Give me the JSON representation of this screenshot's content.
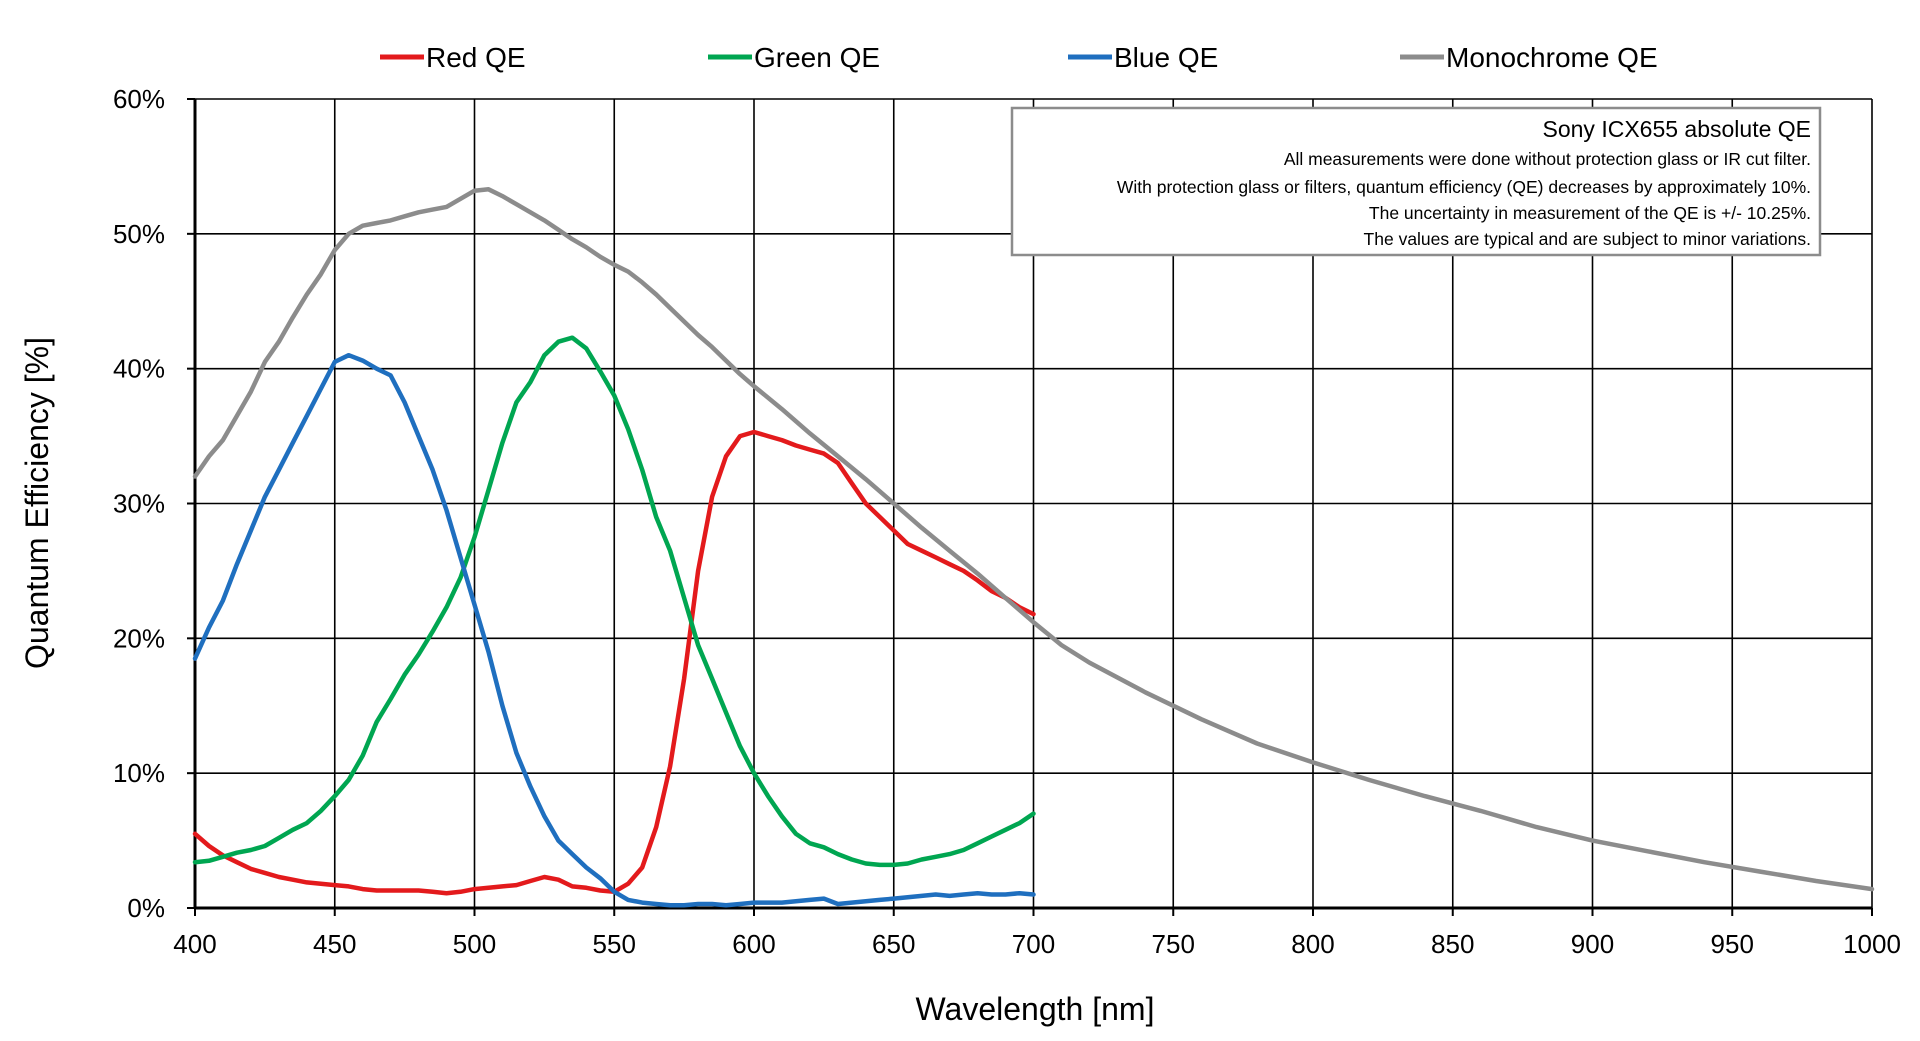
{
  "chart_data": {
    "type": "line",
    "xlabel": "Wavelength [nm]",
    "ylabel": "Quantum Efficiency [%]",
    "xlim": [
      400,
      1000
    ],
    "ylim": [
      0,
      60
    ],
    "x_ticks": [
      400,
      450,
      500,
      550,
      600,
      650,
      700,
      750,
      800,
      850,
      900,
      950,
      1000
    ],
    "x_tick_labels": [
      "400",
      "450",
      "500",
      "550",
      "600",
      "650",
      "700",
      "750",
      "800",
      "850",
      "900",
      "950",
      "1000"
    ],
    "y_ticks": [
      0,
      10,
      20,
      30,
      40,
      50,
      60
    ],
    "y_tick_labels": [
      "0%",
      "10%",
      "20%",
      "30%",
      "40%",
      "50%",
      "60%"
    ],
    "grid": true,
    "legend_position": "top",
    "annotation": {
      "title": "Sony ICX655 absolute QE",
      "lines": [
        "All measurements were done without protection glass or IR cut filter.",
        "With protection glass or filters, quantum efficiency (QE) decreases by approximately 10%.",
        "The uncertainty in measurement of the QE is +/- 10.25%.",
        "The values are typical and are subject to minor variations."
      ],
      "position": "top-right"
    },
    "series": [
      {
        "name": "Red QE",
        "color": "#e31a1c",
        "x": [
          400,
          405,
          410,
          415,
          420,
          425,
          430,
          435,
          440,
          445,
          450,
          455,
          460,
          465,
          470,
          475,
          480,
          485,
          490,
          495,
          500,
          505,
          510,
          515,
          520,
          525,
          530,
          535,
          540,
          545,
          550,
          555,
          560,
          565,
          570,
          575,
          580,
          585,
          590,
          595,
          600,
          605,
          610,
          615,
          620,
          625,
          630,
          635,
          640,
          645,
          650,
          655,
          660,
          665,
          670,
          675,
          680,
          685,
          690,
          695,
          700
        ],
        "y": [
          5.5,
          4.6,
          3.9,
          3.4,
          2.9,
          2.6,
          2.3,
          2.1,
          1.9,
          1.8,
          1.7,
          1.6,
          1.4,
          1.3,
          1.3,
          1.3,
          1.3,
          1.2,
          1.1,
          1.2,
          1.4,
          1.5,
          1.6,
          1.7,
          2.0,
          2.3,
          2.1,
          1.6,
          1.5,
          1.3,
          1.2,
          1.8,
          3.0,
          6.0,
          10.5,
          17.0,
          25.0,
          30.5,
          33.5,
          35.0,
          35.3,
          35.0,
          34.7,
          34.3,
          34.0,
          33.7,
          33.0,
          31.5,
          30.0,
          29.0,
          28.0,
          27.0,
          26.5,
          26.0,
          25.5,
          25.0,
          24.3,
          23.5,
          23.0,
          22.3,
          21.8
        ]
      },
      {
        "name": "Green QE",
        "color": "#00a651",
        "x": [
          400,
          405,
          410,
          415,
          420,
          425,
          430,
          435,
          440,
          445,
          450,
          455,
          460,
          465,
          470,
          475,
          480,
          485,
          490,
          495,
          500,
          505,
          510,
          515,
          520,
          525,
          530,
          535,
          540,
          545,
          550,
          555,
          560,
          565,
          570,
          575,
          580,
          585,
          590,
          595,
          600,
          605,
          610,
          615,
          620,
          625,
          630,
          635,
          640,
          645,
          650,
          655,
          660,
          665,
          670,
          675,
          680,
          685,
          690,
          695,
          700
        ],
        "y": [
          3.4,
          3.5,
          3.8,
          4.1,
          4.3,
          4.6,
          5.2,
          5.8,
          6.3,
          7.2,
          8.3,
          9.5,
          11.3,
          13.8,
          15.5,
          17.3,
          18.8,
          20.5,
          22.3,
          24.5,
          27.5,
          31.0,
          34.5,
          37.5,
          39.0,
          41.0,
          42.0,
          42.3,
          41.5,
          39.8,
          38.0,
          35.5,
          32.5,
          29.0,
          26.5,
          23.0,
          19.5,
          17.0,
          14.5,
          12.0,
          10.0,
          8.3,
          6.8,
          5.5,
          4.8,
          4.5,
          4.0,
          3.6,
          3.3,
          3.2,
          3.2,
          3.3,
          3.6,
          3.8,
          4.0,
          4.3,
          4.8,
          5.3,
          5.8,
          6.3,
          7.0
        ]
      },
      {
        "name": "Blue QE",
        "color": "#1f6fbf",
        "x": [
          400,
          405,
          410,
          415,
          420,
          425,
          430,
          435,
          440,
          445,
          450,
          455,
          460,
          465,
          470,
          475,
          480,
          485,
          490,
          495,
          500,
          505,
          510,
          515,
          520,
          525,
          530,
          535,
          540,
          545,
          550,
          555,
          560,
          565,
          570,
          575,
          580,
          585,
          590,
          595,
          600,
          605,
          610,
          615,
          620,
          625,
          630,
          635,
          640,
          645,
          650,
          655,
          660,
          665,
          670,
          675,
          680,
          685,
          690,
          695,
          700
        ],
        "y": [
          18.5,
          20.8,
          22.8,
          25.5,
          28.0,
          30.5,
          32.5,
          34.5,
          36.5,
          38.5,
          40.5,
          41.0,
          40.6,
          40.0,
          39.5,
          37.5,
          35.0,
          32.5,
          29.5,
          26.0,
          22.5,
          19.0,
          15.0,
          11.5,
          9.0,
          6.8,
          5.0,
          4.0,
          3.0,
          2.2,
          1.2,
          0.6,
          0.4,
          0.3,
          0.2,
          0.2,
          0.3,
          0.3,
          0.2,
          0.3,
          0.4,
          0.4,
          0.4,
          0.5,
          0.6,
          0.7,
          0.3,
          0.4,
          0.5,
          0.6,
          0.7,
          0.8,
          0.9,
          1.0,
          0.9,
          1.0,
          1.1,
          1.0,
          1.0,
          1.1,
          1.0
        ]
      },
      {
        "name": "Monochrome QE",
        "color": "#8c8c8c",
        "x": [
          400,
          405,
          410,
          415,
          420,
          425,
          430,
          435,
          440,
          445,
          450,
          455,
          460,
          465,
          470,
          475,
          480,
          485,
          490,
          495,
          500,
          505,
          510,
          515,
          520,
          525,
          530,
          535,
          540,
          545,
          550,
          555,
          560,
          565,
          570,
          575,
          580,
          585,
          590,
          595,
          600,
          610,
          620,
          630,
          640,
          650,
          660,
          670,
          680,
          690,
          700,
          710,
          720,
          740,
          760,
          780,
          800,
          820,
          840,
          860,
          880,
          900,
          920,
          940,
          960,
          980,
          1000
        ],
        "y": [
          32.0,
          33.5,
          34.7,
          36.5,
          38.3,
          40.5,
          42.0,
          43.8,
          45.5,
          47.0,
          48.8,
          50.0,
          50.6,
          50.8,
          51.0,
          51.3,
          51.6,
          51.8,
          52.0,
          52.6,
          53.2,
          53.3,
          52.8,
          52.2,
          51.6,
          51.0,
          50.3,
          49.6,
          49.0,
          48.3,
          47.7,
          47.2,
          46.4,
          45.5,
          44.5,
          43.5,
          42.5,
          41.6,
          40.6,
          39.6,
          38.7,
          37.0,
          35.2,
          33.5,
          31.8,
          30.0,
          28.2,
          26.5,
          24.8,
          23.0,
          21.2,
          19.5,
          18.2,
          16.0,
          14.0,
          12.2,
          10.8,
          9.5,
          8.3,
          7.2,
          6.0,
          5.0,
          4.2,
          3.4,
          2.7,
          2.0,
          1.4
        ]
      }
    ]
  }
}
